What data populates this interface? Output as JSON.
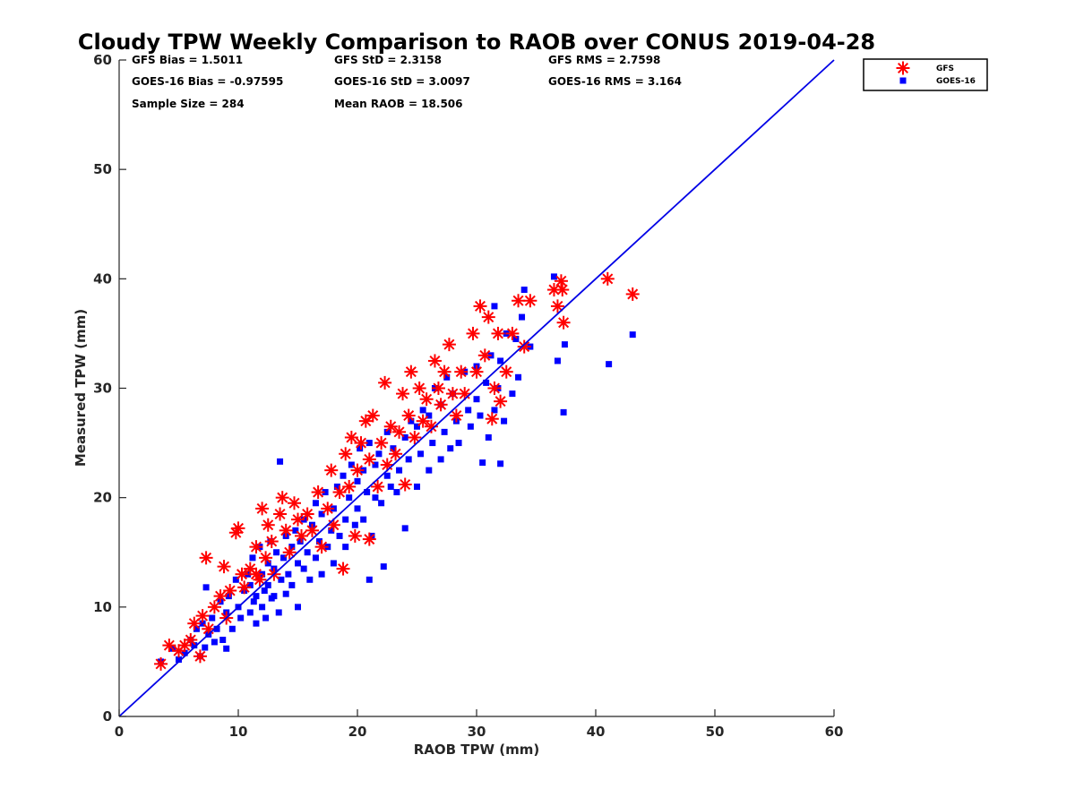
{
  "chart_data": {
    "type": "scatter",
    "title": "Cloudy TPW Weekly Comparison to RAOB over CONUS 2019-04-28",
    "xlabel": "RAOB TPW (mm)",
    "ylabel": "Measured TPW (mm)",
    "xlim": [
      0,
      60
    ],
    "ylim": [
      0,
      60
    ],
    "xticks": [
      "0",
      "10",
      "20",
      "30",
      "40",
      "50",
      "60"
    ],
    "yticks": [
      "0",
      "10",
      "20",
      "30",
      "40",
      "50",
      "60"
    ],
    "grid": false,
    "legend_position": "top-right, outside plot",
    "reference_line": {
      "from": [
        0,
        0
      ],
      "to": [
        60,
        60
      ],
      "color": "#0000e6"
    },
    "stats": [
      [
        "GFS Bias = 1.5011",
        "GFS StD = 2.3158",
        "GFS RMS = 2.7598"
      ],
      [
        "GOES-16 Bias = -0.97595",
        "GOES-16 StD = 3.0097",
        "GOES-16 RMS = 3.164"
      ],
      [
        "Sample Size = 284",
        "Mean RAOB = 18.506",
        ""
      ]
    ],
    "series": [
      {
        "name": "GOES-16",
        "marker": "square",
        "color": "#0000ff",
        "points": [
          [
            3.5,
            5.0
          ],
          [
            4.5,
            6.2
          ],
          [
            5.0,
            5.2
          ],
          [
            5.5,
            5.8
          ],
          [
            6.0,
            7.0
          ],
          [
            6.3,
            6.5
          ],
          [
            6.5,
            8.0
          ],
          [
            6.8,
            5.5
          ],
          [
            7.0,
            8.5
          ],
          [
            7.2,
            6.3
          ],
          [
            7.5,
            7.5
          ],
          [
            7.8,
            9.0
          ],
          [
            8.0,
            6.8
          ],
          [
            8.2,
            8.0
          ],
          [
            8.5,
            10.5
          ],
          [
            8.7,
            7.0
          ],
          [
            9.0,
            9.5
          ],
          [
            9.2,
            11.0
          ],
          [
            9.5,
            8.0
          ],
          [
            9.8,
            12.5
          ],
          [
            10.0,
            10.0
          ],
          [
            10.2,
            9.0
          ],
          [
            10.5,
            11.5
          ],
          [
            10.8,
            13.0
          ],
          [
            11.0,
            9.5
          ],
          [
            11.0,
            12.0
          ],
          [
            11.2,
            14.5
          ],
          [
            11.3,
            10.5
          ],
          [
            11.5,
            8.5
          ],
          [
            11.5,
            11.0
          ],
          [
            11.7,
            12.8
          ],
          [
            11.8,
            15.5
          ],
          [
            12.0,
            10.0
          ],
          [
            12.0,
            13.0
          ],
          [
            12.2,
            11.5
          ],
          [
            12.3,
            9.0
          ],
          [
            12.5,
            14.0
          ],
          [
            12.5,
            12.0
          ],
          [
            12.7,
            16.0
          ],
          [
            12.8,
            10.8
          ],
          [
            13.0,
            13.5
          ],
          [
            13.0,
            11.0
          ],
          [
            13.2,
            15.0
          ],
          [
            13.4,
            9.5
          ],
          [
            13.5,
            23.3
          ],
          [
            13.6,
            12.5
          ],
          [
            13.8,
            14.5
          ],
          [
            14.0,
            16.5
          ],
          [
            14.0,
            11.2
          ],
          [
            14.2,
            13.0
          ],
          [
            14.5,
            15.5
          ],
          [
            14.5,
            12.0
          ],
          [
            14.8,
            17.0
          ],
          [
            15.0,
            14.0
          ],
          [
            15.0,
            10.0
          ],
          [
            15.2,
            16.0
          ],
          [
            15.5,
            13.5
          ],
          [
            15.5,
            18.0
          ],
          [
            15.8,
            15.0
          ],
          [
            16.0,
            12.5
          ],
          [
            16.2,
            17.5
          ],
          [
            16.5,
            14.5
          ],
          [
            16.5,
            19.5
          ],
          [
            16.8,
            16.0
          ],
          [
            17.0,
            13.0
          ],
          [
            17.0,
            18.5
          ],
          [
            17.3,
            20.5
          ],
          [
            17.5,
            15.5
          ],
          [
            17.8,
            17.0
          ],
          [
            18.0,
            14.0
          ],
          [
            18.0,
            19.0
          ],
          [
            18.3,
            21.0
          ],
          [
            18.5,
            16.5
          ],
          [
            18.8,
            22.0
          ],
          [
            19.0,
            18.0
          ],
          [
            19.0,
            15.5
          ],
          [
            19.3,
            20.0
          ],
          [
            19.5,
            23.0
          ],
          [
            19.8,
            17.5
          ],
          [
            20.0,
            21.5
          ],
          [
            20.0,
            19.0
          ],
          [
            20.2,
            24.5
          ],
          [
            20.5,
            18.0
          ],
          [
            20.5,
            22.5
          ],
          [
            20.8,
            20.5
          ],
          [
            21.0,
            12.5
          ],
          [
            21.0,
            25.0
          ],
          [
            21.2,
            16.5
          ],
          [
            21.5,
            23.0
          ],
          [
            21.5,
            20.0
          ],
          [
            21.8,
            24.0
          ],
          [
            22.0,
            19.5
          ],
          [
            22.2,
            13.7
          ],
          [
            22.5,
            22.0
          ],
          [
            22.5,
            26.0
          ],
          [
            22.8,
            21.0
          ],
          [
            23.0,
            24.5
          ],
          [
            23.3,
            20.5
          ],
          [
            23.5,
            22.5
          ],
          [
            24.0,
            17.2
          ],
          [
            24.0,
            25.5
          ],
          [
            24.3,
            23.5
          ],
          [
            24.5,
            27.0
          ],
          [
            25.0,
            21.0
          ],
          [
            25.0,
            26.5
          ],
          [
            25.3,
            24.0
          ],
          [
            25.5,
            28.0
          ],
          [
            26.0,
            22.5
          ],
          [
            26.0,
            27.5
          ],
          [
            26.3,
            25.0
          ],
          [
            26.5,
            30.0
          ],
          [
            27.0,
            23.5
          ],
          [
            27.0,
            28.5
          ],
          [
            27.3,
            26.0
          ],
          [
            27.5,
            31.0
          ],
          [
            27.8,
            24.5
          ],
          [
            28.0,
            29.5
          ],
          [
            28.3,
            27.0
          ],
          [
            28.5,
            25.0
          ],
          [
            29.0,
            31.5
          ],
          [
            29.3,
            28.0
          ],
          [
            29.5,
            26.5
          ],
          [
            30.0,
            32.0
          ],
          [
            30.0,
            29.0
          ],
          [
            30.3,
            27.5
          ],
          [
            30.5,
            23.2
          ],
          [
            30.8,
            30.5
          ],
          [
            31.0,
            25.5
          ],
          [
            31.2,
            33.0
          ],
          [
            31.5,
            28.0
          ],
          [
            31.5,
            37.5
          ],
          [
            31.8,
            30.0
          ],
          [
            32.0,
            23.1
          ],
          [
            32.0,
            32.5
          ],
          [
            32.3,
            27.0
          ],
          [
            32.5,
            35.0
          ],
          [
            33.0,
            29.5
          ],
          [
            33.3,
            34.5
          ],
          [
            33.5,
            31.0
          ],
          [
            33.8,
            36.5
          ],
          [
            34.0,
            39.0
          ],
          [
            34.5,
            33.8
          ],
          [
            36.5,
            40.2
          ],
          [
            36.8,
            32.5
          ],
          [
            37.3,
            27.8
          ],
          [
            37.4,
            34.0
          ],
          [
            41.1,
            32.2
          ],
          [
            43.1,
            34.9
          ],
          [
            7.3,
            11.8
          ],
          [
            9.0,
            6.2
          ]
        ]
      },
      {
        "name": "GFS",
        "marker": "asterisk",
        "color": "#ff0000",
        "points": [
          [
            3.5,
            4.8
          ],
          [
            4.2,
            6.5
          ],
          [
            5.0,
            6.0
          ],
          [
            5.5,
            6.5
          ],
          [
            6.0,
            7.0
          ],
          [
            6.3,
            8.5
          ],
          [
            6.8,
            5.5
          ],
          [
            7.0,
            9.2
          ],
          [
            7.3,
            14.5
          ],
          [
            7.5,
            8.0
          ],
          [
            8.0,
            10.0
          ],
          [
            8.5,
            11.0
          ],
          [
            8.8,
            13.7
          ],
          [
            9.0,
            9.0
          ],
          [
            9.3,
            11.5
          ],
          [
            9.8,
            16.8
          ],
          [
            10.0,
            17.2
          ],
          [
            10.3,
            13.0
          ],
          [
            10.5,
            11.8
          ],
          [
            11.0,
            13.5
          ],
          [
            11.5,
            15.5
          ],
          [
            11.8,
            12.5
          ],
          [
            12.0,
            19.0
          ],
          [
            12.3,
            14.5
          ],
          [
            12.5,
            17.5
          ],
          [
            12.8,
            16.0
          ],
          [
            13.0,
            13.0
          ],
          [
            13.5,
            18.5
          ],
          [
            13.7,
            20.0
          ],
          [
            14.0,
            17.0
          ],
          [
            14.3,
            15.0
          ],
          [
            14.7,
            19.5
          ],
          [
            15.0,
            18.0
          ],
          [
            15.3,
            16.5
          ],
          [
            15.8,
            18.5
          ],
          [
            16.2,
            17.0
          ],
          [
            16.7,
            20.5
          ],
          [
            17.0,
            15.5
          ],
          [
            17.5,
            19.0
          ],
          [
            17.8,
            22.5
          ],
          [
            18.0,
            17.5
          ],
          [
            18.5,
            20.5
          ],
          [
            18.8,
            13.5
          ],
          [
            19.0,
            24.0
          ],
          [
            19.3,
            21.0
          ],
          [
            19.5,
            25.5
          ],
          [
            19.8,
            16.5
          ],
          [
            20.0,
            22.5
          ],
          [
            20.3,
            25.0
          ],
          [
            20.7,
            27.0
          ],
          [
            21.0,
            16.2
          ],
          [
            21.0,
            23.5
          ],
          [
            21.3,
            27.5
          ],
          [
            21.7,
            21.0
          ],
          [
            22.0,
            25.0
          ],
          [
            22.3,
            30.5
          ],
          [
            22.5,
            23.0
          ],
          [
            22.8,
            26.5
          ],
          [
            23.2,
            24.0
          ],
          [
            23.5,
            26.0
          ],
          [
            23.8,
            29.5
          ],
          [
            24.0,
            21.2
          ],
          [
            24.3,
            27.5
          ],
          [
            24.5,
            31.5
          ],
          [
            24.8,
            25.5
          ],
          [
            25.2,
            30.0
          ],
          [
            25.5,
            27.0
          ],
          [
            25.8,
            29.0
          ],
          [
            26.2,
            26.5
          ],
          [
            26.5,
            32.5
          ],
          [
            26.8,
            30.0
          ],
          [
            27.0,
            28.5
          ],
          [
            27.3,
            31.5
          ],
          [
            27.7,
            34.0
          ],
          [
            28.0,
            29.5
          ],
          [
            28.3,
            27.5
          ],
          [
            28.7,
            31.5
          ],
          [
            29.0,
            29.5
          ],
          [
            29.7,
            35.0
          ],
          [
            30.0,
            31.5
          ],
          [
            30.3,
            37.5
          ],
          [
            30.7,
            33.0
          ],
          [
            31.0,
            36.5
          ],
          [
            31.3,
            27.2
          ],
          [
            31.5,
            30.0
          ],
          [
            31.8,
            35.0
          ],
          [
            32.0,
            28.8
          ],
          [
            32.5,
            31.5
          ],
          [
            33.0,
            35.0
          ],
          [
            33.5,
            38.0
          ],
          [
            34.0,
            33.8
          ],
          [
            34.5,
            38.0
          ],
          [
            36.5,
            39.0
          ],
          [
            36.8,
            37.5
          ],
          [
            37.1,
            39.8
          ],
          [
            37.2,
            39.0
          ],
          [
            37.3,
            36.0
          ],
          [
            41.0,
            40.0
          ],
          [
            43.1,
            38.6
          ],
          [
            11.5,
            13.0
          ]
        ]
      }
    ]
  }
}
